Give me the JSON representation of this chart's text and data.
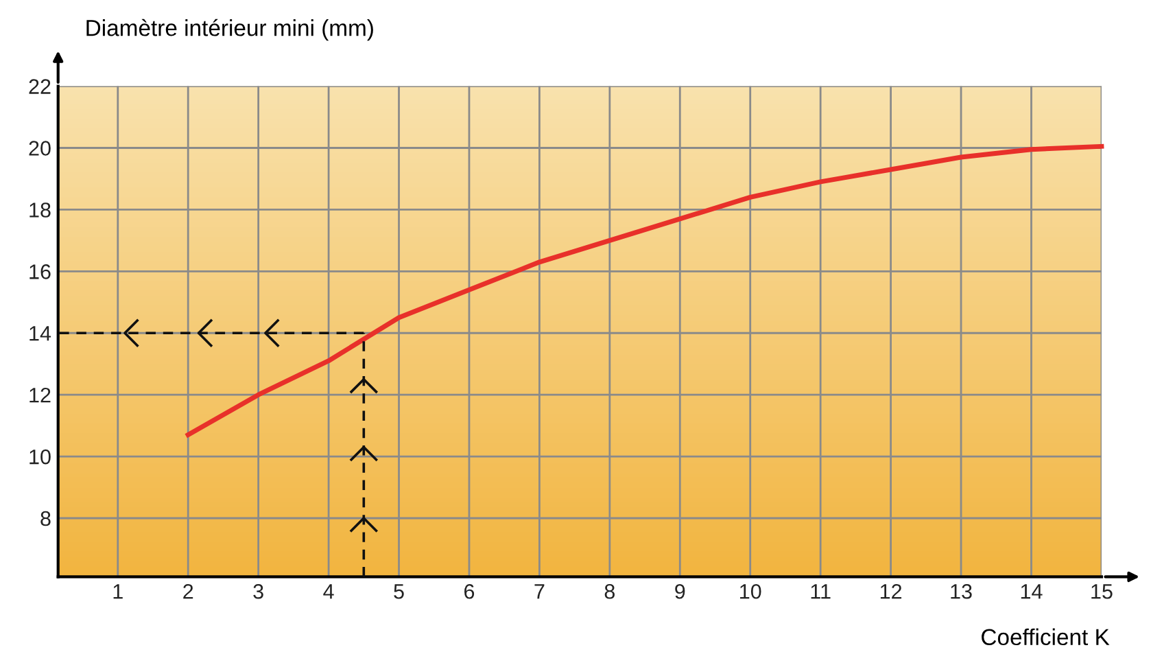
{
  "chart_data": {
    "type": "line",
    "xlabel": "Coefficient K",
    "ylabel": "Diamètre intérieur mini (mm)",
    "xlim": [
      0.15,
      15.0
    ],
    "ylim": [
      6.1,
      22
    ],
    "xticks": [
      1,
      2,
      3,
      4,
      5,
      6,
      7,
      8,
      9,
      10,
      11,
      12,
      13,
      14,
      15
    ],
    "yticks": [
      8,
      10,
      12,
      14,
      16,
      18,
      20,
      22
    ],
    "grid": true,
    "series": [
      {
        "color": "#e8302a",
        "x": [
          2,
          3,
          4,
          5,
          6,
          7,
          8,
          9,
          10,
          11,
          12,
          13,
          14,
          15
        ],
        "values": [
          10.7,
          12.0,
          13.1,
          14.5,
          15.4,
          16.3,
          17.0,
          17.7,
          18.4,
          18.9,
          19.3,
          19.7,
          19.95,
          20.05
        ],
        "line_style": "solid"
      },
      {
        "color": "#111111",
        "x": [
          4.5,
          4.5,
          4.5,
          4.5,
          4.5
        ],
        "values": [
          6.1,
          8.0,
          10.3,
          12.5,
          14
        ],
        "line_style": "dashed"
      },
      {
        "color": "#111111",
        "x": [
          4.5,
          3.1,
          2.15,
          1.1,
          0.15
        ],
        "values": [
          14,
          14,
          14,
          14,
          14
        ],
        "line_style": "dashed"
      }
    ]
  }
}
